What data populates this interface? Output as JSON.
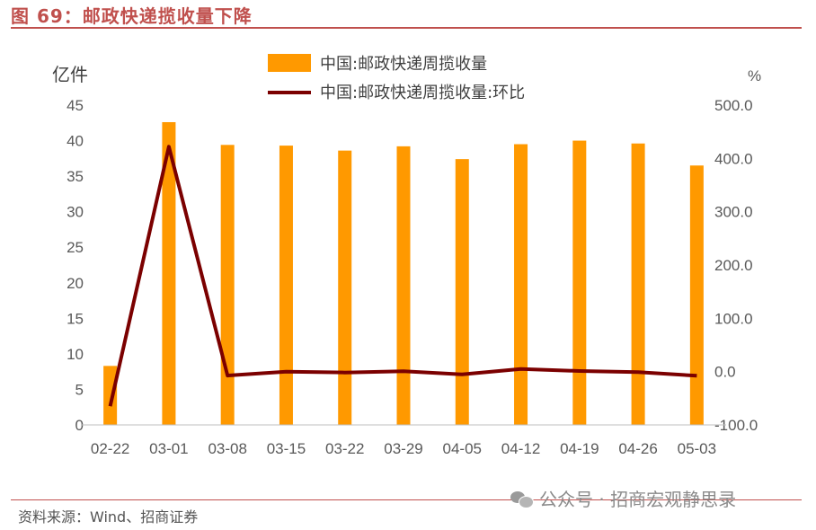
{
  "figure": {
    "title": "图 69：邮政快递揽收量下降",
    "source": "资料来源：Wind、招商证券",
    "watermark": "公众号 · 招商宏观静思录"
  },
  "colors": {
    "bar": "#ff9900",
    "line": "#7b0000",
    "accent": "#c0504d"
  },
  "chart_data": {
    "type": "bar",
    "categories": [
      "02-22",
      "03-01",
      "03-08",
      "03-15",
      "03-22",
      "03-29",
      "04-05",
      "04-12",
      "04-19",
      "04-26",
      "05-03"
    ],
    "series": [
      {
        "name": "中国:邮政快递周揽收量",
        "type": "bar",
        "axis": "left",
        "values": [
          8.3,
          42.6,
          39.4,
          39.3,
          38.6,
          39.2,
          37.4,
          39.5,
          40.0,
          39.6,
          36.5
        ]
      },
      {
        "name": "中国:邮政快递周揽收量:环比",
        "type": "line",
        "axis": "right",
        "values": [
          -65.0,
          422.0,
          -7.5,
          -0.3,
          -1.8,
          0.7,
          -5.2,
          4.9,
          1.2,
          -1.0,
          -7.8
        ]
      }
    ],
    "left_axis": {
      "unit": "亿件",
      "ylim": [
        0,
        45
      ],
      "ticks": [
        "0",
        "5",
        "10",
        "15",
        "20",
        "25",
        "30",
        "35",
        "40",
        "45"
      ]
    },
    "right_axis": {
      "unit": "%",
      "ylim": [
        -100,
        500
      ],
      "ticks": [
        "-100.0",
        "0.0",
        "100.0",
        "200.0",
        "300.0",
        "400.0",
        "500.0"
      ]
    },
    "grid": false,
    "legend": "top-center"
  }
}
